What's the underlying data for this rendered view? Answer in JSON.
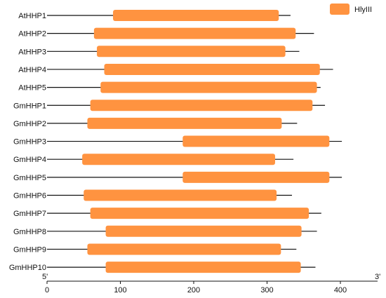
{
  "legend": {
    "label": "HlyIII",
    "color": "#FF9340"
  },
  "axis": {
    "start_label": "5'",
    "end_label": "3'",
    "ticks": [
      0,
      100,
      200,
      300,
      400
    ],
    "range": [
      0,
      450
    ]
  },
  "genes": [
    {
      "name": "AtHHP1",
      "length": 332,
      "domain_start": 90,
      "domain_end": 316
    },
    {
      "name": "AtHHP2",
      "length": 364,
      "domain_start": 64,
      "domain_end": 339
    },
    {
      "name": "AtHHP3",
      "length": 344,
      "domain_start": 68,
      "domain_end": 325
    },
    {
      "name": "AtHHP4",
      "length": 390,
      "domain_start": 78,
      "domain_end": 372
    },
    {
      "name": "AtHHP5",
      "length": 373,
      "domain_start": 73,
      "domain_end": 368
    },
    {
      "name": "GmHHP1",
      "length": 379,
      "domain_start": 59,
      "domain_end": 362
    },
    {
      "name": "GmHHP2",
      "length": 341,
      "domain_start": 55,
      "domain_end": 320
    },
    {
      "name": "GmHHP3",
      "length": 402,
      "domain_start": 185,
      "domain_end": 385
    },
    {
      "name": "GmHHP4",
      "length": 336,
      "domain_start": 48,
      "domain_end": 311
    },
    {
      "name": "GmHHP5",
      "length": 402,
      "domain_start": 185,
      "domain_end": 385
    },
    {
      "name": "GmHHP6",
      "length": 334,
      "domain_start": 50,
      "domain_end": 313
    },
    {
      "name": "GmHHP7",
      "length": 374,
      "domain_start": 59,
      "domain_end": 357
    },
    {
      "name": "GmHHP8",
      "length": 368,
      "domain_start": 80,
      "domain_end": 347
    },
    {
      "name": "GmHHP9",
      "length": 340,
      "domain_start": 55,
      "domain_end": 319
    },
    {
      "name": "GmHHP10",
      "length": 366,
      "domain_start": 80,
      "domain_end": 346
    }
  ]
}
